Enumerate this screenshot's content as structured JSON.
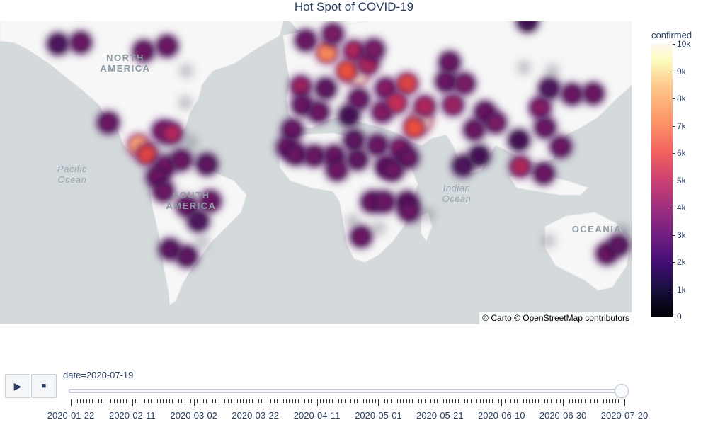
{
  "title": "Hot Spot of COVID-19",
  "map": {
    "continent_labels": [
      "NORTH AMERICA",
      "SOUTH AMERICA",
      "OCEANIA"
    ],
    "ocean_labels": [
      "Pacific Ocean",
      "Indian Ocean"
    ],
    "attribution": "© Carto © OpenStreetMap contributors"
  },
  "colorbar": {
    "title": "confirmed",
    "tick_labels": [
      "0",
      "1k",
      "2k",
      "3k",
      "4k",
      "5k",
      "6k",
      "7k",
      "8k",
      "9k",
      "10k"
    ],
    "range": [
      0,
      10000
    ],
    "colorscale": "magma-like (dark purple to cream)"
  },
  "animation": {
    "current_value_prefix": "date=",
    "current_value": "2020-07-19",
    "current_value_text": "date=2020-07-19",
    "play_icon": "play-icon",
    "stop_icon": "stop-icon",
    "tick_labels": [
      "2020-01-22",
      "2020-02-11",
      "2020-03-02",
      "2020-03-22",
      "2020-04-11",
      "2020-05-01",
      "2020-05-21",
      "2020-06-10",
      "2020-06-30",
      "2020-07-20"
    ],
    "frame_count": 181,
    "current_frame_index": 179
  },
  "chart_data": {
    "type": "density_mapbox",
    "title": "Hot Spot of COVID-19",
    "z_label": "confirmed",
    "z_range": [
      0,
      10000
    ],
    "animation_frame": "date",
    "date_range": [
      "2020-01-22",
      "2020-07-20"
    ],
    "current_date": "2020-07-19"
  }
}
